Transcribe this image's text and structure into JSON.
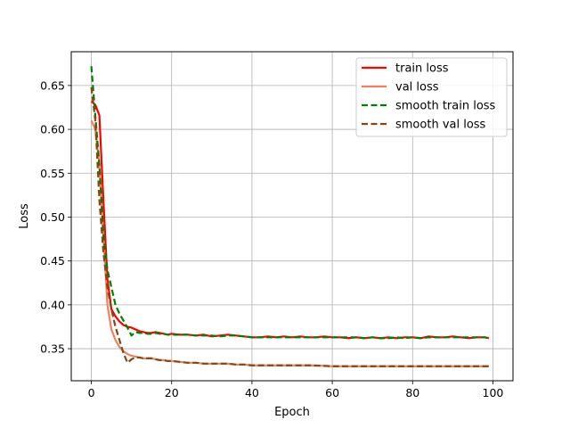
{
  "chart_data": {
    "type": "line",
    "title": "",
    "xlabel": "Epoch",
    "ylabel": "Loss",
    "xlim": [
      -5,
      105
    ],
    "ylim": [
      0.3135,
      0.6885
    ],
    "xticks": [
      0,
      20,
      40,
      60,
      80,
      100
    ],
    "xtick_labels": [
      "0",
      "20",
      "40",
      "60",
      "80",
      "100"
    ],
    "yticks": [
      0.35,
      0.4,
      0.45,
      0.5,
      0.55,
      0.6,
      0.65
    ],
    "ytick_labels": [
      "0.35",
      "0.40",
      "0.45",
      "0.50",
      "0.55",
      "0.60",
      "0.65"
    ],
    "grid": true,
    "legend_position": "top-right",
    "series": [
      {
        "name": "train loss",
        "color": "#ff0000",
        "style": "solid",
        "x": [
          0,
          1,
          2,
          3,
          4,
          5,
          6,
          7,
          8,
          9,
          10,
          11,
          12,
          13,
          14,
          15,
          16,
          17,
          18,
          19,
          20,
          22,
          24,
          26,
          28,
          30,
          32,
          34,
          36,
          38,
          40,
          42,
          44,
          46,
          48,
          50,
          52,
          54,
          56,
          58,
          60,
          62,
          64,
          66,
          68,
          70,
          72,
          74,
          76,
          78,
          80,
          82,
          84,
          86,
          88,
          90,
          92,
          94,
          96,
          98,
          99
        ],
        "y": [
          0.632,
          0.628,
          0.616,
          0.52,
          0.43,
          0.395,
          0.387,
          0.381,
          0.377,
          0.375,
          0.374,
          0.372,
          0.37,
          0.369,
          0.368,
          0.368,
          0.369,
          0.368,
          0.367,
          0.366,
          0.367,
          0.366,
          0.366,
          0.365,
          0.366,
          0.364,
          0.365,
          0.366,
          0.365,
          0.364,
          0.363,
          0.363,
          0.364,
          0.363,
          0.364,
          0.363,
          0.364,
          0.363,
          0.363,
          0.364,
          0.363,
          0.363,
          0.362,
          0.363,
          0.362,
          0.363,
          0.362,
          0.363,
          0.362,
          0.363,
          0.363,
          0.362,
          0.364,
          0.363,
          0.363,
          0.364,
          0.363,
          0.362,
          0.363,
          0.363,
          0.362
        ]
      },
      {
        "name": "val loss",
        "color": "#f08060",
        "style": "solid",
        "x": [
          0,
          1,
          2,
          3,
          4,
          5,
          6,
          7,
          8,
          9,
          10,
          11,
          12,
          13,
          14,
          15,
          16,
          17,
          18,
          19,
          20,
          22,
          24,
          26,
          28,
          30,
          32,
          34,
          36,
          38,
          40,
          45,
          50,
          55,
          60,
          65,
          70,
          75,
          80,
          85,
          90,
          95,
          99
        ],
        "y": [
          0.61,
          0.6,
          0.56,
          0.48,
          0.4,
          0.372,
          0.36,
          0.352,
          0.347,
          0.344,
          0.342,
          0.341,
          0.34,
          0.339,
          0.339,
          0.339,
          0.338,
          0.337,
          0.337,
          0.336,
          0.336,
          0.335,
          0.334,
          0.334,
          0.333,
          0.333,
          0.333,
          0.333,
          0.332,
          0.332,
          0.331,
          0.331,
          0.331,
          0.331,
          0.33,
          0.33,
          0.33,
          0.33,
          0.33,
          0.33,
          0.33,
          0.33,
          0.33
        ]
      },
      {
        "name": "smooth train loss",
        "color": "#008000",
        "style": "dashed",
        "x": [
          0,
          1,
          2,
          3,
          4,
          5,
          6,
          7,
          8,
          9,
          10,
          11,
          12,
          13,
          14,
          15,
          16,
          17,
          18,
          19,
          20,
          22,
          24,
          26,
          28,
          30,
          32,
          34,
          36,
          38,
          40,
          42,
          44,
          46,
          48,
          50,
          52,
          54,
          56,
          58,
          60,
          62,
          64,
          66,
          68,
          70,
          72,
          74,
          76,
          78,
          80,
          82,
          84,
          86,
          88,
          90,
          92,
          94,
          96,
          98,
          99
        ],
        "y": [
          0.672,
          0.615,
          0.56,
          0.48,
          0.44,
          0.42,
          0.4,
          0.39,
          0.382,
          0.374,
          0.365,
          0.369,
          0.368,
          0.368,
          0.367,
          0.367,
          0.368,
          0.367,
          0.367,
          0.366,
          0.366,
          0.366,
          0.366,
          0.365,
          0.365,
          0.365,
          0.364,
          0.365,
          0.365,
          0.364,
          0.363,
          0.363,
          0.363,
          0.363,
          0.363,
          0.363,
          0.363,
          0.363,
          0.363,
          0.363,
          0.363,
          0.363,
          0.363,
          0.363,
          0.362,
          0.363,
          0.362,
          0.362,
          0.363,
          0.362,
          0.363,
          0.362,
          0.363,
          0.363,
          0.363,
          0.363,
          0.363,
          0.363,
          0.363,
          0.363,
          0.362
        ]
      },
      {
        "name": "smooth val loss",
        "color": "#8b4513",
        "style": "dashed",
        "x": [
          0,
          1,
          2,
          3,
          4,
          5,
          6,
          7,
          8,
          9,
          10,
          11,
          12,
          13,
          14,
          15,
          16,
          17,
          18,
          19,
          20,
          22,
          24,
          26,
          28,
          30,
          32,
          34,
          36,
          38,
          40,
          45,
          50,
          55,
          60,
          65,
          70,
          75,
          80,
          85,
          90,
          95,
          99
        ],
        "y": [
          0.648,
          0.61,
          0.52,
          0.46,
          0.42,
          0.395,
          0.375,
          0.36,
          0.345,
          0.334,
          0.338,
          0.34,
          0.34,
          0.339,
          0.339,
          0.339,
          0.338,
          0.337,
          0.337,
          0.336,
          0.336,
          0.335,
          0.334,
          0.334,
          0.333,
          0.333,
          0.333,
          0.333,
          0.332,
          0.332,
          0.331,
          0.331,
          0.331,
          0.331,
          0.33,
          0.33,
          0.33,
          0.33,
          0.33,
          0.33,
          0.33,
          0.33,
          0.33
        ]
      }
    ]
  }
}
